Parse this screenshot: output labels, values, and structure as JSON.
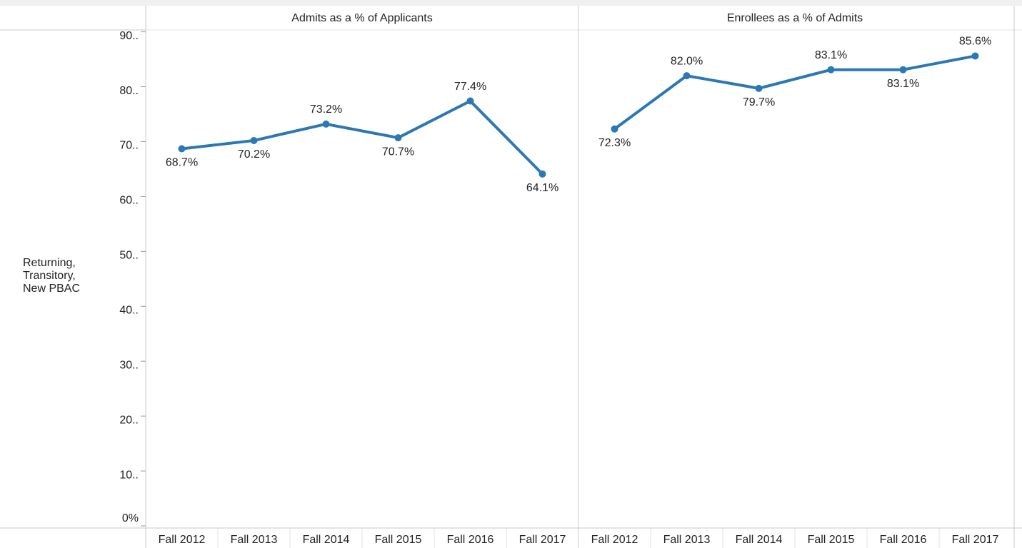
{
  "chart_data": {
    "type": "line",
    "row_label": "Returning, Transitory, New PBAC",
    "categories": [
      "Fall 2012",
      "Fall 2013",
      "Fall 2014",
      "Fall 2015",
      "Fall 2016",
      "Fall 2017"
    ],
    "series": [
      {
        "name": "Admits as a % of Applicants",
        "color": "#2b78b5",
        "values": [
          68.7,
          70.2,
          73.2,
          70.7,
          77.4,
          64.1
        ],
        "value_labels": [
          "68.7%",
          "70.2%",
          "73.2%",
          "70.7%",
          "77.4%",
          "64.1%"
        ]
      },
      {
        "name": "Enrollees as a % of Admits",
        "color": "#2b78b5",
        "values": [
          72.3,
          82.0,
          79.7,
          83.1,
          83.1,
          85.6
        ],
        "value_labels": [
          "72.3%",
          "82.0%",
          "79.7%",
          "83.1%",
          "83.1%",
          "85.6%"
        ]
      }
    ],
    "ylim": [
      0,
      90.6
    ],
    "yticks": [
      {
        "value": 0,
        "label": "0%"
      },
      {
        "value": 10,
        "label": "10.."
      },
      {
        "value": 20,
        "label": "20.."
      },
      {
        "value": 30,
        "label": "30.."
      },
      {
        "value": 40,
        "label": "40.."
      },
      {
        "value": 50,
        "label": "50.."
      },
      {
        "value": 60,
        "label": "60.."
      },
      {
        "value": 70,
        "label": "70.."
      },
      {
        "value": 80,
        "label": "80.."
      },
      {
        "value": 90,
        "label": "90.."
      }
    ]
  }
}
